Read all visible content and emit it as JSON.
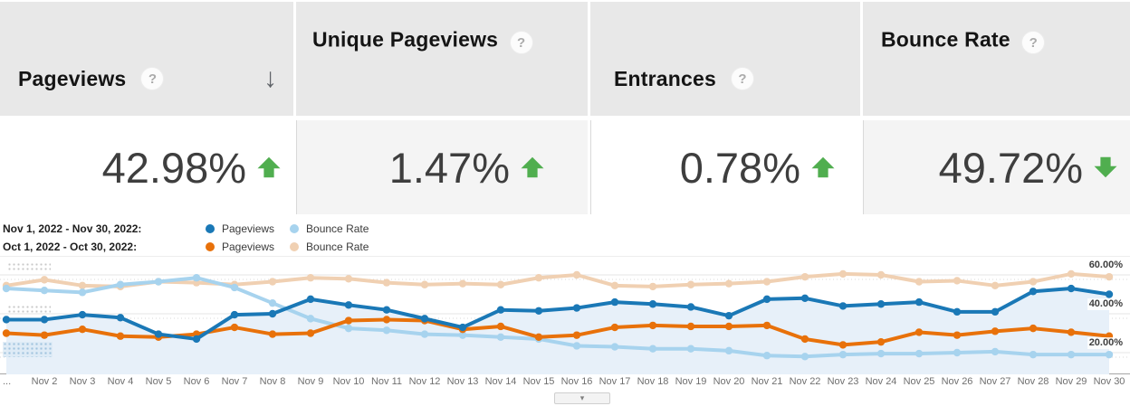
{
  "header": {
    "trend_color": "#50ae4f",
    "help_icon_glyph": "?",
    "sort_arrow_glyph": "↓",
    "columns": [
      {
        "label": "Pageviews",
        "value": "42.98%",
        "trend": "up",
        "sorted": true
      },
      {
        "label": "Unique Pageviews",
        "value": "1.47%",
        "trend": "up",
        "sorted": false
      },
      {
        "label": "Entrances",
        "value": "0.78%",
        "trend": "up",
        "sorted": false
      },
      {
        "label": "Bounce Rate",
        "value": "49.72%",
        "trend": "down",
        "sorted": false
      }
    ]
  },
  "legend": {
    "rows": [
      {
        "date_range": "Nov 1, 2022 - Nov 30, 2022:",
        "items": [
          {
            "label": "Pageviews",
            "color": "#1a78b6"
          },
          {
            "label": "Bounce Rate",
            "color": "#a7d3ee"
          }
        ]
      },
      {
        "date_range": "Oct 1, 2022 - Oct 30, 2022:",
        "items": [
          {
            "label": "Pageviews",
            "color": "#e8710a"
          },
          {
            "label": "Bounce Rate",
            "color": "#f0d0b2"
          }
        ]
      }
    ]
  },
  "chart_data": {
    "type": "line",
    "title": "Pageviews and Bounce Rate comparison, Nov 1-30 2022 vs Oct 1-30 2022",
    "x_labels": [
      "...",
      "Nov 2",
      "Nov 3",
      "Nov 4",
      "Nov 5",
      "Nov 6",
      "Nov 7",
      "Nov 8",
      "Nov 9",
      "Nov 10",
      "Nov 11",
      "Nov 12",
      "Nov 13",
      "Nov 14",
      "Nov 15",
      "Nov 16",
      "Nov 17",
      "Nov 18",
      "Nov 19",
      "Nov 20",
      "Nov 21",
      "Nov 22",
      "Nov 23",
      "Nov 24",
      "Nov 25",
      "Nov 26",
      "Nov 27",
      "Nov 28",
      "Nov 29",
      "Nov 30"
    ],
    "y_axis": {
      "side": "right",
      "unit": "%",
      "labels": [
        "60.00%",
        "40.00%",
        "20.00%"
      ],
      "values": [
        60,
        40,
        20
      ],
      "range": [
        8.8,
        69
      ]
    },
    "grid": true,
    "area_fill_color": "#e7f0f9",
    "grid_color": "#e6e6e6",
    "dotted_grid_color": "#d8d8d8",
    "series": [
      {
        "name": "Pageviews (Nov 1, 2022 - Nov 30, 2022)",
        "color": "#1a78b6",
        "fill": true,
        "values": [
          37,
          37,
          39.5,
          38,
          29.5,
          27,
          39.5,
          40,
          47.5,
          44.5,
          42,
          37.5,
          33,
          42,
          41.5,
          43,
          46,
          45,
          43.5,
          39,
          47.5,
          48,
          44,
          45,
          46,
          41,
          41,
          51.5,
          53,
          50
        ]
      },
      {
        "name": "Bounce Rate (Nov 1, 2022 - Nov 30, 2022)",
        "color": "#a7d3ee",
        "fill": false,
        "values": [
          53,
          52,
          51,
          55,
          56.5,
          58.5,
          53.5,
          45.5,
          37.5,
          32.5,
          31.5,
          29.5,
          29,
          28,
          27,
          23.5,
          23,
          22,
          22,
          21,
          18.5,
          18,
          19,
          19.5,
          19.5,
          20,
          20.5,
          19,
          19,
          19
        ]
      },
      {
        "name": "Pageviews (Oct 1, 2022 - Oct 30, 2022)",
        "color": "#e8710a",
        "fill": false,
        "values": [
          30,
          29,
          32,
          28.5,
          28,
          29.5,
          33,
          29.5,
          30,
          36.5,
          37,
          36.5,
          32,
          33.5,
          28,
          29,
          33,
          34,
          33.5,
          33.5,
          34,
          27,
          24,
          25.5,
          30.5,
          29,
          31,
          32.5,
          30.5,
          28.5
        ]
      },
      {
        "name": "Bounce Rate (Oct 1, 2022 - Oct 30, 2022)",
        "color": "#f0d0b2",
        "fill": false,
        "values": [
          54.5,
          57.5,
          54.5,
          54,
          56.5,
          56,
          55,
          56.5,
          58.5,
          58,
          56,
          55,
          55.5,
          55,
          58.5,
          60,
          54.5,
          54,
          55,
          55.5,
          56.5,
          59,
          60.5,
          60,
          56.5,
          57,
          54.5,
          56.5,
          60.5,
          59
        ]
      }
    ],
    "legend_position": "top-left"
  },
  "footer": {
    "collapse_caret": "▾"
  }
}
